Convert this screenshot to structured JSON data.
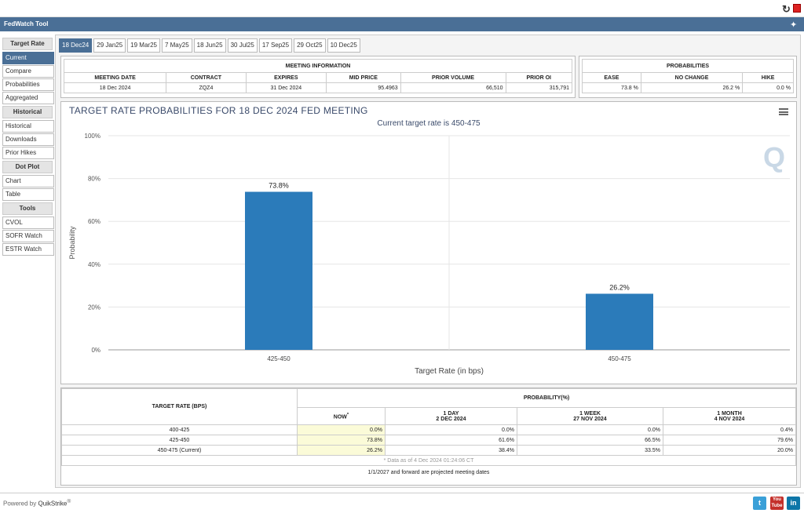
{
  "app": {
    "title": "FedWatch Tool",
    "powered_by": "Powered by",
    "brand": "QuikStrike",
    "reg": "®"
  },
  "sidebar": {
    "target_rate": {
      "heading": "Target Rate",
      "items": [
        "Current",
        "Compare",
        "Probabilities",
        "Aggregated"
      ]
    },
    "historical": {
      "heading": "Historical",
      "items": [
        "Historical",
        "Downloads",
        "Prior Hikes"
      ]
    },
    "dot_plot": {
      "heading": "Dot Plot",
      "items": [
        "Chart",
        "Table"
      ]
    },
    "tools": {
      "heading": "Tools",
      "items": [
        "CVOL",
        "SOFR Watch",
        "ESTR Watch"
      ]
    }
  },
  "tabs": [
    "18 Dec24",
    "29 Jan25",
    "19 Mar25",
    "7 May25",
    "18 Jun25",
    "30 Jul25",
    "17 Sep25",
    "29 Oct25",
    "10 Dec25"
  ],
  "meeting_info": {
    "heading": "MEETING INFORMATION",
    "columns": [
      "MEETING DATE",
      "CONTRACT",
      "EXPIRES",
      "MID PRICE",
      "PRIOR VOLUME",
      "PRIOR OI"
    ],
    "values": [
      "18 Dec 2024",
      "ZQZ4",
      "31 Dec 2024",
      "95.4963",
      "66,510",
      "315,791"
    ]
  },
  "probabilities_box": {
    "heading": "PROBABILITIES",
    "columns": [
      "EASE",
      "NO CHANGE",
      "HIKE"
    ],
    "values": [
      "73.8 %",
      "26.2 %",
      "0.0 %"
    ]
  },
  "chart_header": {
    "title": "TARGET RATE PROBABILITIES FOR 18 DEC 2024 FED MEETING",
    "subtitle": "Current target rate is 450-475",
    "watermark": "Q"
  },
  "chart_data": {
    "type": "bar",
    "categories": [
      "425-450",
      "450-475"
    ],
    "values": [
      73.8,
      26.2
    ],
    "data_labels": [
      "73.8%",
      "26.2%"
    ],
    "xlabel": "Target Rate (in bps)",
    "ylabel": "Probability",
    "ylim": [
      0,
      100
    ],
    "yticks": [
      "0%",
      "20%",
      "40%",
      "60%",
      "80%",
      "100%"
    ],
    "grid": true,
    "color": "#2b7bba"
  },
  "prob_table": {
    "rate_heading": "TARGET RATE (BPS)",
    "prob_heading": "PROBABILITY(%)",
    "now": "NOW",
    "now_mark": "*",
    "col_1day": [
      "1 DAY",
      "2 DEC 2024"
    ],
    "col_1week": [
      "1 WEEK",
      "27 NOV 2024"
    ],
    "col_1month": [
      "1 MONTH",
      "4 NOV 2024"
    ],
    "rows": [
      {
        "rate": "400-425",
        "now": "0.0%",
        "d1": "0.0%",
        "w1": "0.0%",
        "m1": "0.4%"
      },
      {
        "rate": "425-450",
        "now": "73.8%",
        "d1": "61.6%",
        "w1": "66.5%",
        "m1": "79.6%"
      },
      {
        "rate": "450-475 (Current)",
        "now": "26.2%",
        "d1": "38.4%",
        "w1": "33.5%",
        "m1": "20.0%"
      }
    ],
    "data_as_of": "* Data as of 4 Dec 2024 01:24:06 CT",
    "projected_note": "1/1/2027 and forward are projected meeting dates"
  },
  "colors": {
    "accent": "#4a6f96",
    "bar": "#2b7bba",
    "now_col": "#fbfbd8"
  }
}
